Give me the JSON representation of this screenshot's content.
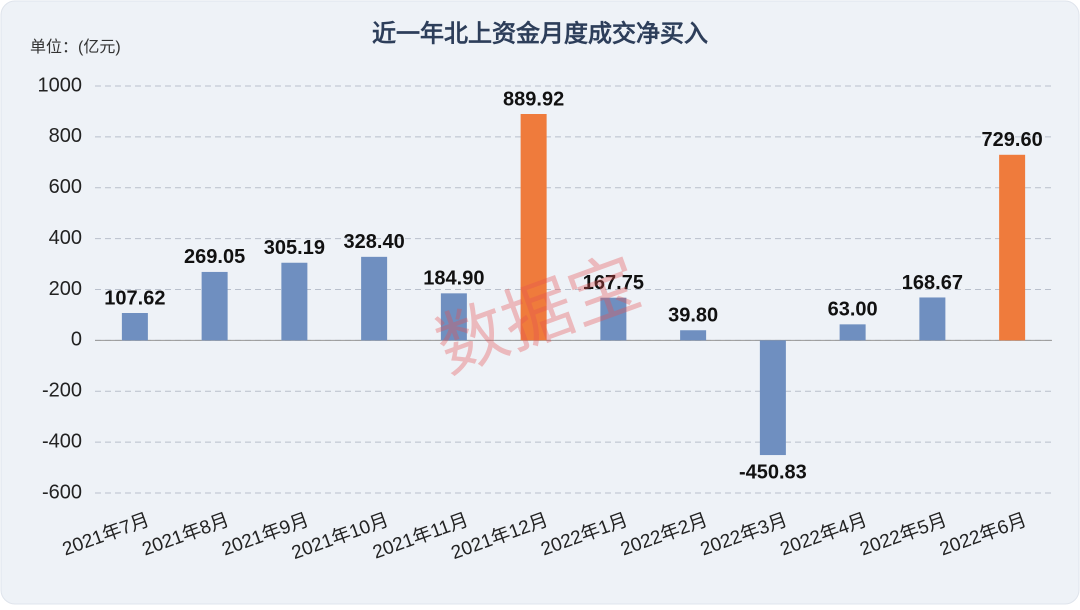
{
  "chart_data": {
    "type": "bar",
    "title": "近一年北上资金月度成交净买入",
    "unit_label": "单位：(亿元)",
    "watermark": "数据宝",
    "categories": [
      "2021年7月",
      "2021年8月",
      "2021年9月",
      "2021年10月",
      "2021年11月",
      "2021年12月",
      "2022年1月",
      "2022年2月",
      "2022年3月",
      "2022年4月",
      "2022年5月",
      "2022年6月"
    ],
    "values": [
      107.62,
      269.05,
      305.19,
      328.4,
      184.9,
      889.92,
      167.75,
      39.8,
      -450.83,
      63.0,
      168.67,
      729.6
    ],
    "value_labels": [
      "107.62",
      "269.05",
      "305.19",
      "328.40",
      "184.90",
      "889.92",
      "167.75",
      "39.80",
      "-450.83",
      "63.00",
      "168.67",
      "729.60"
    ],
    "colors": [
      "#6f8fc0",
      "#6f8fc0",
      "#6f8fc0",
      "#6f8fc0",
      "#6f8fc0",
      "#ef7b3c",
      "#6f8fc0",
      "#6f8fc0",
      "#6f8fc0",
      "#6f8fc0",
      "#6f8fc0",
      "#ef7b3c"
    ],
    "ylim": [
      -600,
      1000
    ],
    "yticks": [
      -600,
      -400,
      -200,
      0,
      200,
      400,
      600,
      800,
      1000
    ],
    "grid": true
  }
}
